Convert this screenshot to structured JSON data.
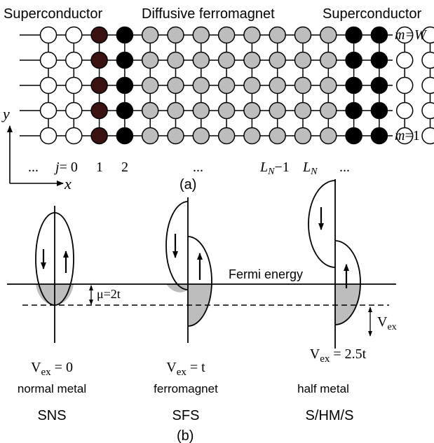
{
  "panel_a": {
    "labels": {
      "left_superconductor": "Superconductor",
      "ferromagnet": "Diffusive ferromagnet",
      "right_superconductor": "Superconductor",
      "m_top_prefix": "m",
      "m_top_value": "=W",
      "m_bottom_prefix": "m",
      "m_bottom_value": "=1",
      "axis_y": "y",
      "axis_x": "x",
      "dots_left": "...",
      "j0_prefix": "j",
      "j0_value": "= 0",
      "j1": "1",
      "j2": "2",
      "dots_middle": "...",
      "ln_minus_1": "L",
      "ln_minus_1_sub": "N",
      "ln_minus_1_suffix": "−1",
      "ln": "L",
      "ln_sub": "N",
      "dots_right": "...",
      "caption": "(a)"
    },
    "lattice": {
      "rows": 5,
      "columns": [
        "white",
        "white",
        "darkred",
        "black",
        "gray",
        "gray",
        "gray",
        "gray",
        "gray",
        "gray",
        "gray",
        "gray",
        "black",
        "black",
        "white",
        "white"
      ]
    },
    "colors": {
      "white": "#ffffff",
      "darkred": "#3a1212",
      "black": "#000000",
      "gray": "#bdbdbd"
    }
  },
  "panel_b": {
    "fermi_label": "Fermi energy",
    "mu_label": "μ=2t",
    "vex_label": "V",
    "vex_sub": "ex",
    "shade_color": "#bdbdbd",
    "cases": [
      {
        "id": "sns",
        "vex_main": "V",
        "vex_sub": "ex",
        "vex_value": " = 0",
        "material": "normal metal",
        "junction": "SNS"
      },
      {
        "id": "sfs",
        "vex_main": "V",
        "vex_sub": "ex",
        "vex_value": " = t",
        "material": "ferromagnet",
        "junction": "SFS"
      },
      {
        "id": "shms",
        "vex_main": "V",
        "vex_sub": "ex",
        "vex_value": " = 2.5t",
        "material": "half metal",
        "junction": "S/HM/S"
      }
    ],
    "caption": "(b)"
  }
}
